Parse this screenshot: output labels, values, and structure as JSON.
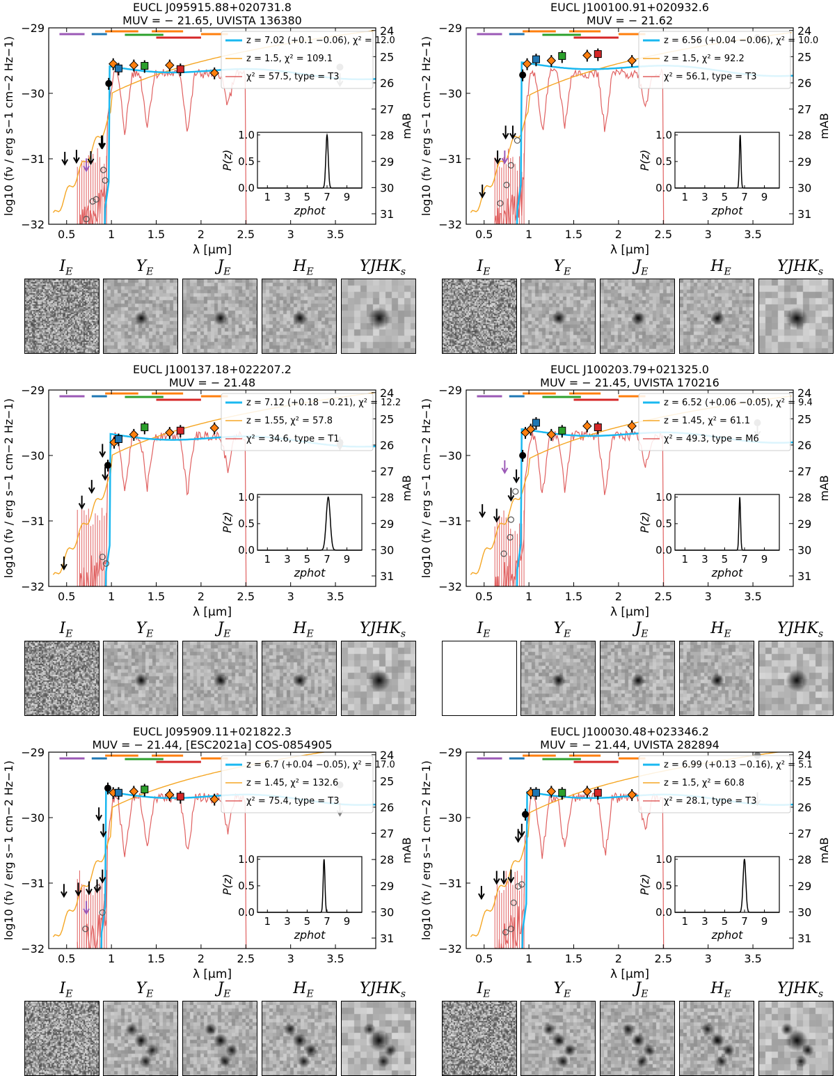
{
  "common": {
    "xlabel": "λ [μm]",
    "ylabel_left": "log10 (fν / erg s−1 cm−2 Hz−1)",
    "ylabel_right": "mAB",
    "xticks": [
      0.5,
      1,
      1.5,
      2,
      2.5,
      3,
      3.5
    ],
    "xtick_labels": [
      "0.5",
      "1",
      "1.5",
      "2",
      "2.5",
      "3",
      "3.5"
    ],
    "xlim": [
      0.3,
      3.95
    ],
    "ylim_left": [
      -32,
      -29
    ],
    "yticks_left": [
      -32,
      -31,
      -30,
      -29
    ],
    "ytick_labels_left": [
      "−32",
      "−31",
      "−30",
      "−29"
    ],
    "yticks_right": [
      24,
      25,
      26,
      27,
      28,
      29,
      30,
      31
    ],
    "inset": {
      "ylabel": "P(z)",
      "xlabel": "zphot",
      "xticks": [
        1,
        3,
        5,
        7,
        9
      ],
      "xtick_labels": [
        "1",
        "3",
        "5",
        "7",
        "9"
      ],
      "yticks": [
        0.0,
        0.5,
        1.0
      ],
      "ytick_labels": [
        "0.0",
        "0.5",
        "1.0"
      ],
      "xlim": [
        0,
        10.5
      ]
    },
    "stamp_labels": [
      "I_E",
      "Y_E",
      "J_E",
      "H_E",
      "YJHK_s"
    ],
    "colors": {
      "galaxy_fit": "#1ab8f0",
      "lowz_fit": "#f5a623",
      "brown_dwarf": "#e06060",
      "filter_bars": [
        "#9b59b6",
        "#1f77b4",
        "#ff7f0e",
        "#2ca02c",
        "#d62728",
        "#ff7f0e",
        "#ff7f0e"
      ],
      "euclid_y": "#1f77b4",
      "euclid_j": "#2ca02c",
      "euclid_h": "#d62728",
      "ground": "#ff7f0e",
      "irac": "#808080",
      "upper_limit": "#000000",
      "hsc_limit": "#9b59b6"
    }
  },
  "chart_data": [
    {
      "type": "line",
      "title": "EUCL J095915.88+020731.8",
      "subtitle": "MUV = − 21.65, UVISTA 136380",
      "legend": [
        "z = 7.02 (+0.1 −0.06), χ² = 12.0",
        "z = 1.5, χ² = 109.1",
        "χ² = 57.5, type = T3"
      ],
      "redshift": 7.02,
      "lowz_redshift": 1.5,
      "upper_limits": [
        [
          0.48,
          -31.0
        ],
        [
          0.61,
          -30.97
        ],
        [
          0.77,
          -30.99
        ],
        [
          0.89,
          -30.75
        ],
        [
          0.9,
          -30.75
        ]
      ],
      "dropout_points": [
        [
          0.72,
          -31.92
        ],
        [
          0.79,
          -31.65
        ],
        [
          0.83,
          -31.62
        ],
        [
          0.91,
          -31.17
        ],
        [
          0.93,
          -31.33
        ]
      ],
      "detections": [
        [
          0.97,
          -29.85
        ],
        [
          1.02,
          -29.55
        ],
        [
          1.25,
          -29.57
        ],
        [
          1.65,
          -29.57
        ],
        [
          2.15,
          -29.69
        ]
      ],
      "euclid": [
        [
          1.08,
          -29.62
        ],
        [
          1.37,
          -29.58
        ],
        [
          1.77,
          -29.63
        ]
      ],
      "irac": [
        [
          3.55,
          -29.6
        ]
      ],
      "irac_limits": [
        [
          3.55,
          -29.8
        ]
      ],
      "hsc_limit": [
        0.72,
        -31.1
      ],
      "pz_peak": 7.0,
      "pz_width": 0.12,
      "galaxy_plateau": -29.6,
      "lowz_level": -29.35,
      "stamps": {
        "y_blob": true
      }
    },
    {
      "type": "line",
      "title": "EUCL J100100.91+020932.6",
      "subtitle": "MUV = − 21.62",
      "legend": [
        "z = 6.56 (+0.04 −0.06), χ² = 10.0",
        "z = 1.5, χ² = 92.2",
        "χ² = 56.1, type = T3"
      ],
      "redshift": 6.56,
      "lowz_redshift": 1.5,
      "upper_limits": [
        [
          0.48,
          -31.5
        ],
        [
          0.65,
          -30.98
        ],
        [
          0.74,
          -30.6
        ],
        [
          0.82,
          -30.6
        ]
      ],
      "dropout_points": [
        [
          0.68,
          -31.68
        ],
        [
          0.75,
          -31.4
        ],
        [
          0.8,
          -31.1
        ],
        [
          0.87,
          -30.72
        ]
      ],
      "detections": [
        [
          0.93,
          -29.72
        ],
        [
          0.98,
          -29.55
        ],
        [
          1.25,
          -29.5
        ],
        [
          1.65,
          -29.42
        ],
        [
          2.15,
          -29.5
        ]
      ],
      "euclid": [
        [
          1.08,
          -29.48
        ],
        [
          1.37,
          -29.43
        ],
        [
          1.77,
          -29.4
        ]
      ],
      "irac": [
        [
          3.55,
          -29.15
        ]
      ],
      "irac_limits": [],
      "hsc_limit": [
        0.73,
        -30.98
      ],
      "pz_peak": 6.56,
      "pz_width": 0.08,
      "galaxy_plateau": -29.55,
      "lowz_level": -29.38,
      "stamps": {
        "y_blob": true
      }
    },
    {
      "type": "line",
      "title": "EUCL J100137.18+022207.2",
      "subtitle": "MUV = − 21.48",
      "legend": [
        "z = 7.12 (+0.18 −0.21), χ² = 12.2",
        "z = 1.55, χ² = 57.8",
        "χ² = 34.6, type = T1"
      ],
      "redshift": 7.12,
      "lowz_redshift": 1.55,
      "upper_limits": [
        [
          0.47,
          -31.65
        ],
        [
          0.67,
          -30.72
        ],
        [
          0.78,
          -30.48
        ],
        [
          0.9,
          -29.93
        ],
        [
          0.93,
          -30.28
        ]
      ],
      "dropout_points": [
        [
          0.9,
          -31.55
        ],
        [
          0.94,
          -31.65
        ]
      ],
      "detections": [
        [
          0.96,
          -30.15
        ],
        [
          1.03,
          -29.8
        ],
        [
          1.25,
          -29.68
        ],
        [
          1.65,
          -29.65
        ],
        [
          2.15,
          -29.58
        ]
      ],
      "euclid": [
        [
          1.08,
          -29.75
        ],
        [
          1.37,
          -29.57
        ],
        [
          1.77,
          -29.62
        ]
      ],
      "irac": [
        [
          3.55,
          -29.8
        ]
      ],
      "irac_limits": [
        [
          3.55,
          -29.82
        ]
      ],
      "hsc_limit": null,
      "pz_peak": 7.12,
      "pz_width": 0.2,
      "galaxy_plateau": -29.68,
      "lowz_level": -29.35,
      "stamps": {
        "y_blob": true
      }
    },
    {
      "type": "line",
      "title": "EUCL J100203.79+021325.0",
      "subtitle": "MUV = − 21.45, UVISTA 170216",
      "legend": [
        "z = 6.52 (+0.06 −0.05), χ² = 9.4",
        "z = 1.45, χ² = 61.1",
        "χ² = 49.3, type = M6"
      ],
      "redshift": 6.52,
      "lowz_redshift": 1.45,
      "upper_limits": [
        [
          0.48,
          -30.85
        ],
        [
          0.64,
          -30.92
        ],
        [
          0.8,
          -30.6
        ],
        [
          0.86,
          -30.32
        ]
      ],
      "dropout_points": [
        [
          0.72,
          -31.5
        ],
        [
          0.79,
          -31.25
        ],
        [
          0.8,
          -30.98
        ],
        [
          0.85,
          -30.55
        ]
      ],
      "detections": [
        [
          0.93,
          -30.0
        ],
        [
          0.96,
          -29.65
        ],
        [
          1.02,
          -29.6
        ],
        [
          1.25,
          -29.68
        ],
        [
          1.65,
          -29.55
        ],
        [
          2.15,
          -29.55
        ]
      ],
      "euclid": [
        [
          1.08,
          -29.5
        ],
        [
          1.37,
          -29.62
        ],
        [
          1.77,
          -29.57
        ]
      ],
      "irac": [
        [
          3.55,
          -29.5
        ]
      ],
      "irac_limits": [
        [
          3.55,
          -29.62
        ]
      ],
      "hsc_limit": [
        0.73,
        -30.18
      ],
      "pz_peak": 6.52,
      "pz_width": 0.08,
      "galaxy_plateau": -29.62,
      "lowz_level": -29.4,
      "stamps": {
        "y_blob": true,
        "i_blank": true
      }
    },
    {
      "type": "line",
      "title": "EUCL J095909.11+021822.3",
      "subtitle": "MUV = − 21.44, [ESC2021a] COS-0854905",
      "legend": [
        "z = 6.7 (+0.04 −0.05), χ² = 17.0",
        "z = 1.45, χ² = 132.6",
        "χ² = 75.4, type = T3"
      ],
      "redshift": 6.7,
      "lowz_redshift": 1.45,
      "upper_limits": [
        [
          0.47,
          -31.12
        ],
        [
          0.63,
          -31.1
        ],
        [
          0.75,
          -31.08
        ],
        [
          0.84,
          -31.05
        ],
        [
          0.9,
          -30.9
        ],
        [
          0.91,
          -30.2
        ],
        [
          0.86,
          -29.95
        ]
      ],
      "dropout_points": [
        [
          0.71,
          -31.7
        ],
        [
          0.85,
          -31.07
        ],
        [
          0.9,
          -31.45
        ]
      ],
      "detections": [
        [
          0.96,
          -29.55
        ],
        [
          1.02,
          -29.62
        ],
        [
          1.25,
          -29.6
        ],
        [
          1.65,
          -29.65
        ],
        [
          2.15,
          -29.72
        ]
      ],
      "euclid": [
        [
          1.08,
          -29.62
        ],
        [
          1.37,
          -29.57
        ],
        [
          1.77,
          -29.68
        ]
      ],
      "irac": [
        [
          3.55,
          -29.5
        ]
      ],
      "irac_limits": [
        [
          3.55,
          -29.88
        ]
      ],
      "hsc_limit": [
        0.72,
        -31.38
      ],
      "pz_peak": 6.7,
      "pz_width": 0.09,
      "galaxy_plateau": -29.62,
      "lowz_level": -29.2,
      "stamps": {
        "y_blob": true,
        "multi": true
      }
    },
    {
      "type": "line",
      "title": "EUCL J100030.48+023346.2",
      "subtitle": "MUV = − 21.44, UVISTA 282894",
      "legend": [
        "z = 6.99 (+0.13 −0.16), χ² = 5.1",
        "z = 1.5, χ² = 60.8",
        "χ² = 28.1, type = T3"
      ],
      "redshift": 6.99,
      "lowz_redshift": 1.5,
      "upper_limits": [
        [
          0.47,
          -31.15
        ],
        [
          0.64,
          -30.92
        ],
        [
          0.72,
          -30.92
        ],
        [
          0.8,
          -30.9
        ],
        [
          0.88,
          -30.28
        ],
        [
          0.92,
          -30.2
        ]
      ],
      "dropout_points": [
        [
          0.74,
          -31.75
        ],
        [
          0.8,
          -31.7
        ],
        [
          0.83,
          -31.3
        ],
        [
          0.88,
          -31.05
        ],
        [
          0.92,
          -31.02
        ]
      ],
      "detections": [
        [
          0.96,
          -29.95
        ],
        [
          1.02,
          -29.62
        ],
        [
          1.25,
          -29.6
        ],
        [
          1.65,
          -29.6
        ],
        [
          2.15,
          -29.65
        ]
      ],
      "euclid": [
        [
          1.08,
          -29.62
        ],
        [
          1.37,
          -29.62
        ],
        [
          1.77,
          -29.62
        ]
      ],
      "irac": [
        [
          3.55,
          -29.05
        ]
      ],
      "irac_limits": [
        [
          3.55,
          -29.72
        ]
      ],
      "hsc_limit": null,
      "pz_peak": 6.99,
      "pz_width": 0.14,
      "galaxy_plateau": -29.62,
      "lowz_level": -29.28,
      "stamps": {
        "y_blob": true,
        "multi": true
      }
    }
  ]
}
